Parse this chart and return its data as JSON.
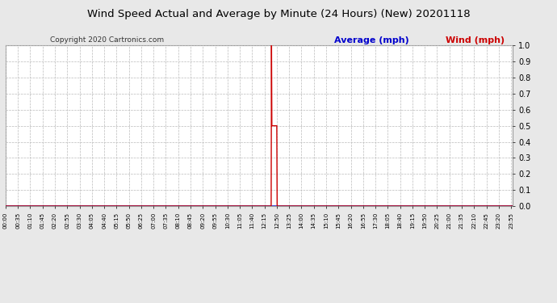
{
  "title": "Wind Speed Actual and Average by Minute (24 Hours) (New) 20201118",
  "copyright": "Copyright 2020 Cartronics.com",
  "legend_average": "Average (mph)",
  "legend_wind": "Wind (mph)",
  "ylim": [
    0.0,
    1.0
  ],
  "yticks": [
    0.0,
    0.1,
    0.2,
    0.3,
    0.4,
    0.5,
    0.6,
    0.7,
    0.8,
    0.9,
    1.0
  ],
  "fig_bg_color": "#e8e8e8",
  "plot_bg_color": "#ffffff",
  "wind_color": "#cc0000",
  "average_color": "#0000cc",
  "grid_color": "#bbbbbb",
  "title_color": "#000000",
  "copyright_color": "#333333",
  "wind_spike_minute": 755,
  "wind_spike2_minute": 770,
  "total_minutes": 1440,
  "x_tick_step": 35
}
